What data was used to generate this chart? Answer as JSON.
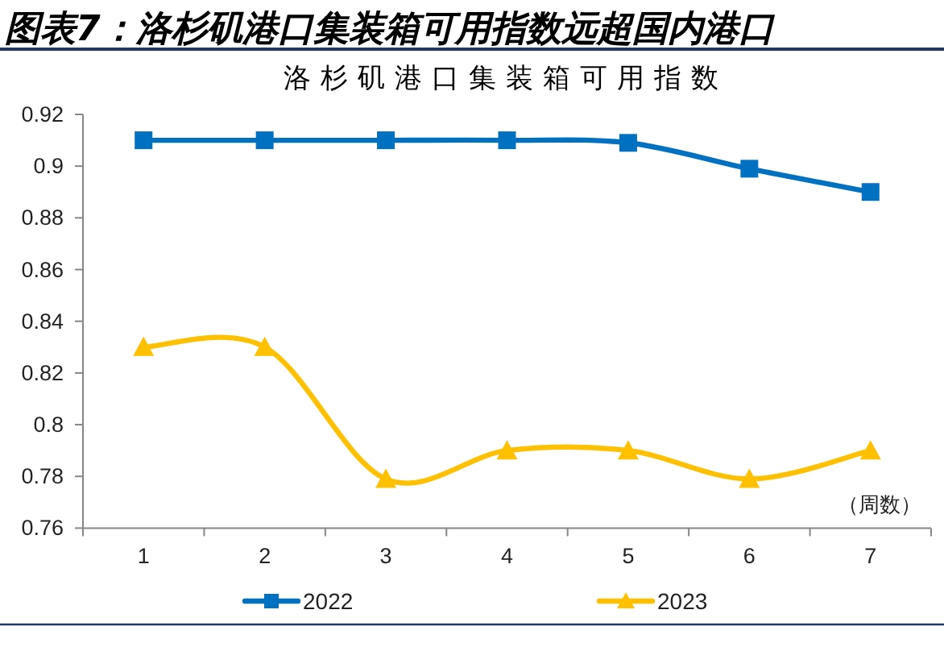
{
  "chart_data": {
    "type": "line",
    "title": "图表7：洛杉矶港口集装箱可用指数远超国内港口",
    "subtitle": "洛杉矶港口集装箱可用指数",
    "xlabel": "（周数）",
    "categories": [
      "1",
      "2",
      "3",
      "4",
      "5",
      "6",
      "7"
    ],
    "series": [
      {
        "name": "2022",
        "color": "#0070c0",
        "marker": "square",
        "values": [
          0.91,
          0.91,
          0.91,
          0.91,
          0.909,
          0.899,
          0.89
        ]
      },
      {
        "name": "2023",
        "color": "#ffc000",
        "marker": "triangle",
        "values": [
          0.83,
          0.83,
          0.779,
          0.79,
          0.79,
          0.779,
          0.79
        ]
      }
    ],
    "ylim": [
      0.76,
      0.92
    ],
    "yticks": [
      0.76,
      0.78,
      0.8,
      0.82,
      0.84,
      0.86,
      0.88,
      0.9,
      0.92
    ],
    "legend": "bottom"
  }
}
